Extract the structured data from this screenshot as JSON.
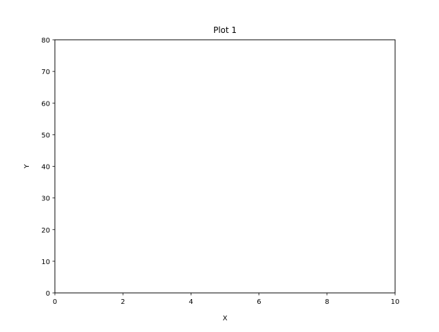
{
  "chart_data": {
    "type": "scatter",
    "title": "Plot 1",
    "xlabel": "X",
    "ylabel": "Y",
    "xlim": [
      0,
      10
    ],
    "ylim": [
      0,
      80
    ],
    "x_ticks": [
      "0",
      "2",
      "4",
      "6",
      "8",
      "10"
    ],
    "y_ticks": [
      "0",
      "10",
      "20",
      "30",
      "40",
      "50",
      "60",
      "70",
      "80"
    ],
    "grid": false,
    "series": []
  }
}
